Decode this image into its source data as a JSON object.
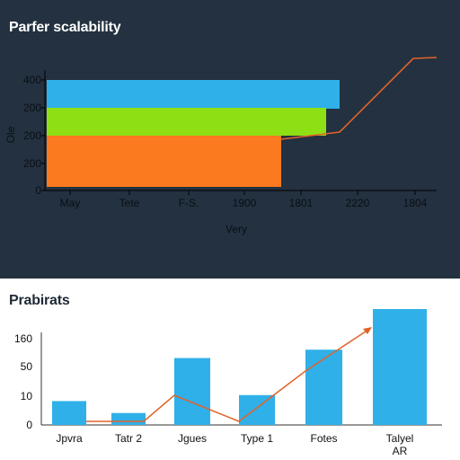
{
  "chart_data": [
    {
      "type": "bar",
      "title": "Parfer scalability",
      "xlabel": "Very",
      "ylabel": "Ole",
      "ylim": [
        0,
        400
      ],
      "ytick_labels": [
        "0",
        "200",
        "200",
        "200",
        "400"
      ],
      "xtick_labels": [
        "May",
        "Tete",
        "F-S.",
        "1900",
        "1801",
        "2220",
        "1804"
      ],
      "orientation": "horizontal",
      "series": [
        {
          "name": "",
          "start": "May",
          "end": "1801",
          "color": "#2fb0e8"
        },
        {
          "name": "",
          "start": "May",
          "end": "1801",
          "color": "#8ee014"
        },
        {
          "name": "",
          "start": "May",
          "end": "1900",
          "color": "#fb7a1f"
        }
      ],
      "line": {
        "color": "#e2632a",
        "points": [
          {
            "x": "1900",
            "y": 105
          },
          {
            "x": "1801",
            "y": 120
          },
          {
            "x": "2220",
            "y": 400
          },
          {
            "x": "1804",
            "y": 400
          }
        ]
      },
      "grid": false,
      "background": "#233140"
    },
    {
      "type": "bar",
      "title": "Prabirats",
      "xlabel": "",
      "ylabel": "",
      "ylim": [
        0,
        160
      ],
      "ytick_labels": [
        "0",
        "10",
        "50",
        "160"
      ],
      "categories": [
        "Jpvra",
        "Tatr 2",
        "Jgues",
        "Type 1",
        "Fotes",
        "Talyel AR"
      ],
      "values": [
        20,
        10,
        56,
        25,
        63,
        97
      ],
      "bar_color": "#2fb0e8",
      "line": {
        "color": "#e2632a",
        "values": [
          2,
          2,
          28,
          2,
          58,
          76
        ]
      },
      "grid": false,
      "background": "#ffffff"
    }
  ]
}
